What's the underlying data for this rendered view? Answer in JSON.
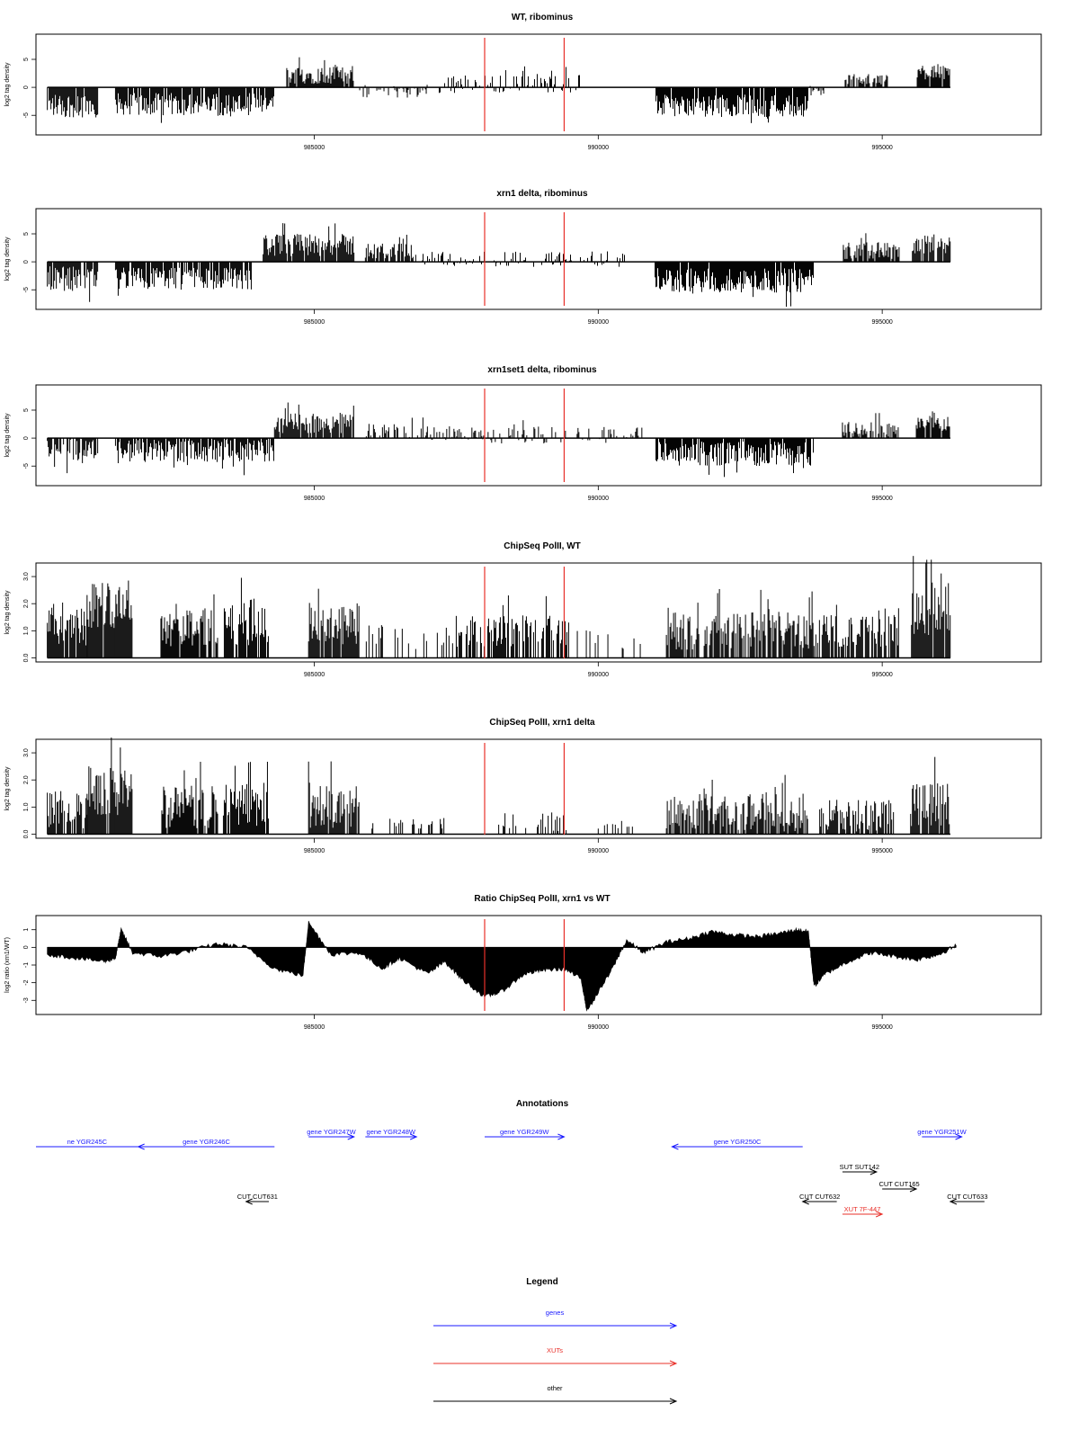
{
  "panels": [
    {
      "title": "WT, ribominus",
      "type": "bar",
      "ylabel": "log2 tag density",
      "ylim": [
        -8.5,
        9.5
      ],
      "yticks": [
        "-5",
        "0",
        "5"
      ],
      "ytick_values": [
        -5,
        0,
        5
      ],
      "xlim": [
        980100,
        997800
      ],
      "xticks": [
        "985000",
        "990000",
        "995000"
      ],
      "xtick_values": [
        985000,
        990000,
        995000
      ],
      "segments": [
        {
          "x0": 980300,
          "x1": 981200,
          "mean": -3.2,
          "amp": 2.2,
          "density": 0.9
        },
        {
          "x0": 981500,
          "x1": 984300,
          "mean": -3.0,
          "amp": 2.0,
          "density": 0.9
        },
        {
          "x0": 984500,
          "x1": 985700,
          "mean": 2.2,
          "amp": 1.6,
          "density": 0.9
        },
        {
          "x0": 985800,
          "x1": 987000,
          "mean": -0.6,
          "amp": 1.3,
          "density": 0.5
        },
        {
          "x0": 987200,
          "x1": 989700,
          "mean": 0.6,
          "amp": 1.6,
          "density": 0.4
        },
        {
          "x0": 991000,
          "x1": 993700,
          "mean": -3.3,
          "amp": 2.0,
          "density": 0.95
        },
        {
          "x0": 993700,
          "x1": 994000,
          "mean": -0.6,
          "amp": 1.0,
          "density": 0.6
        },
        {
          "x0": 994300,
          "x1": 995100,
          "mean": 1.4,
          "amp": 1.0,
          "density": 0.6
        },
        {
          "x0": 995600,
          "x1": 996200,
          "mean": 2.8,
          "amp": 1.4,
          "density": 0.9
        }
      ],
      "markers": [
        988000,
        989400
      ],
      "marker_color": "#e8302a"
    },
    {
      "title": "xrn1 delta, ribominus",
      "type": "bar",
      "ylabel": "log2 tag density",
      "ylim": [
        -8.5,
        9.5
      ],
      "yticks": [
        "-5",
        "0",
        "5"
      ],
      "ytick_values": [
        -5,
        0,
        5
      ],
      "xlim": [
        980100,
        997800
      ],
      "xticks": [
        "985000",
        "990000",
        "995000"
      ],
      "xtick_values": [
        985000,
        990000,
        995000
      ],
      "segments": [
        {
          "x0": 980300,
          "x1": 981200,
          "mean": -3.0,
          "amp": 2.2,
          "density": 0.9
        },
        {
          "x0": 981500,
          "x1": 983900,
          "mean": -3.0,
          "amp": 2.0,
          "density": 0.9
        },
        {
          "x0": 984100,
          "x1": 985700,
          "mean": 3.0,
          "amp": 2.0,
          "density": 0.95
        },
        {
          "x0": 985900,
          "x1": 986800,
          "mean": 2.0,
          "amp": 1.4,
          "density": 0.8
        },
        {
          "x0": 986900,
          "x1": 990500,
          "mean": 0.5,
          "amp": 1.4,
          "density": 0.35
        },
        {
          "x0": 991000,
          "x1": 993800,
          "mean": -3.3,
          "amp": 2.2,
          "density": 0.95
        },
        {
          "x0": 994300,
          "x1": 995300,
          "mean": 2.0,
          "amp": 1.5,
          "density": 0.8
        },
        {
          "x0": 995500,
          "x1": 996200,
          "mean": 3.0,
          "amp": 1.5,
          "density": 0.9
        }
      ],
      "markers": [
        988000,
        989400
      ],
      "marker_color": "#e8302a"
    },
    {
      "title": "xrn1set1 delta, ribominus",
      "type": "bar",
      "ylabel": "log2 tag density",
      "ylim": [
        -8.5,
        9.5
      ],
      "yticks": [
        "-5",
        "0",
        "5"
      ],
      "ytick_values": [
        -5,
        0,
        5
      ],
      "xlim": [
        980100,
        997800
      ],
      "xticks": [
        "985000",
        "990000",
        "995000"
      ],
      "xtick_values": [
        985000,
        990000,
        995000
      ],
      "segments": [
        {
          "x0": 980300,
          "x1": 981200,
          "mean": -2.0,
          "amp": 2.0,
          "density": 0.7
        },
        {
          "x0": 981500,
          "x1": 984300,
          "mean": -2.3,
          "amp": 2.0,
          "density": 0.85
        },
        {
          "x0": 984300,
          "x1": 985700,
          "mean": 2.6,
          "amp": 1.8,
          "density": 0.9
        },
        {
          "x0": 985900,
          "x1": 987000,
          "mean": 1.2,
          "amp": 1.5,
          "density": 0.6
        },
        {
          "x0": 987000,
          "x1": 990800,
          "mean": 0.5,
          "amp": 1.6,
          "density": 0.4
        },
        {
          "x0": 991000,
          "x1": 993800,
          "mean": -2.8,
          "amp": 2.2,
          "density": 0.95
        },
        {
          "x0": 994300,
          "x1": 995300,
          "mean": 1.5,
          "amp": 1.5,
          "density": 0.7
        },
        {
          "x0": 995600,
          "x1": 996200,
          "mean": 2.6,
          "amp": 1.4,
          "density": 0.9
        }
      ],
      "markers": [
        988000,
        989400
      ],
      "marker_color": "#e8302a"
    },
    {
      "title": "ChipSeq PolII, WT",
      "type": "bar",
      "ylabel": "log2 tag density",
      "ylim": [
        -0.15,
        3.5
      ],
      "yticks": [
        "0.0",
        "1.0",
        "2.0",
        "3.0"
      ],
      "ytick_values": [
        0,
        1,
        2,
        3
      ],
      "xlim": [
        980100,
        997800
      ],
      "xticks": [
        "985000",
        "990000",
        "995000"
      ],
      "xtick_values": [
        985000,
        990000,
        995000
      ],
      "segments": [
        {
          "x0": 980300,
          "x1": 981000,
          "mean": 1.2,
          "amp": 0.8,
          "density": 0.9
        },
        {
          "x0": 981000,
          "x1": 981800,
          "mean": 2.0,
          "amp": 0.9,
          "density": 0.95
        },
        {
          "x0": 982300,
          "x1": 983300,
          "mean": 1.2,
          "amp": 0.8,
          "density": 0.9
        },
        {
          "x0": 983400,
          "x1": 984200,
          "mean": 1.3,
          "amp": 0.9,
          "density": 0.9
        },
        {
          "x0": 984900,
          "x1": 985800,
          "mean": 1.3,
          "amp": 0.8,
          "density": 0.9
        },
        {
          "x0": 985900,
          "x1": 987500,
          "mean": 0.8,
          "amp": 0.5,
          "density": 0.3
        },
        {
          "x0": 987500,
          "x1": 989500,
          "mean": 1.0,
          "amp": 0.6,
          "density": 0.7
        },
        {
          "x0": 989600,
          "x1": 990800,
          "mean": 0.7,
          "amp": 0.4,
          "density": 0.2
        },
        {
          "x0": 991200,
          "x1": 993800,
          "mean": 1.0,
          "amp": 0.7,
          "density": 0.8
        },
        {
          "x0": 993800,
          "x1": 995300,
          "mean": 1.0,
          "amp": 0.6,
          "density": 0.75
        },
        {
          "x0": 995500,
          "x1": 996200,
          "mean": 1.8,
          "amp": 1.0,
          "density": 0.95
        }
      ],
      "markers": [
        988000,
        989400
      ],
      "marker_color": "#e8302a"
    },
    {
      "title": "ChipSeq PolII, xrn1 delta",
      "type": "bar",
      "ylabel": "log2 tag density",
      "ylim": [
        -0.15,
        3.5
      ],
      "yticks": [
        "0.0",
        "1.0",
        "2.0",
        "3.0"
      ],
      "ytick_values": [
        0,
        1,
        2,
        3
      ],
      "xlim": [
        980100,
        997800
      ],
      "xticks": [
        "985000",
        "990000",
        "995000"
      ],
      "xtick_values": [
        985000,
        990000,
        995000
      ],
      "segments": [
        {
          "x0": 980300,
          "x1": 981000,
          "mean": 0.9,
          "amp": 0.7,
          "density": 0.8
        },
        {
          "x0": 981000,
          "x1": 981800,
          "mean": 1.6,
          "amp": 0.9,
          "density": 0.95
        },
        {
          "x0": 982300,
          "x1": 983300,
          "mean": 1.0,
          "amp": 0.8,
          "density": 0.9
        },
        {
          "x0": 983400,
          "x1": 984200,
          "mean": 1.1,
          "amp": 0.8,
          "density": 0.9
        },
        {
          "x0": 984900,
          "x1": 985800,
          "mean": 1.0,
          "amp": 0.8,
          "density": 0.9
        },
        {
          "x0": 986000,
          "x1": 987300,
          "mean": 0.4,
          "amp": 0.2,
          "density": 0.25
        },
        {
          "x0": 988200,
          "x1": 989500,
          "mean": 0.4,
          "amp": 0.4,
          "density": 0.3
        },
        {
          "x0": 990000,
          "x1": 990800,
          "mean": 0.3,
          "amp": 0.1,
          "density": 0.1
        },
        {
          "x0": 991200,
          "x1": 993700,
          "mean": 0.8,
          "amp": 0.7,
          "density": 0.8
        },
        {
          "x0": 993900,
          "x1": 995200,
          "mean": 0.7,
          "amp": 0.6,
          "density": 0.7
        },
        {
          "x0": 995500,
          "x1": 996200,
          "mean": 1.1,
          "amp": 0.8,
          "density": 0.9
        }
      ],
      "markers": [
        988000,
        989400
      ],
      "marker_color": "#e8302a"
    },
    {
      "title": "Ratio ChipSeq PolII, xrn1 vs WT",
      "type": "area",
      "ylabel": "log2 ratio (xrn1/WT)",
      "ylim": [
        -3.8,
        1.8
      ],
      "yticks": [
        "-3",
        "-2",
        "-1",
        "0",
        "1"
      ],
      "ytick_values": [
        -3,
        -2,
        -1,
        0,
        1
      ],
      "xlim": [
        980100,
        997800
      ],
      "xticks": [
        "985000",
        "990000",
        "995000"
      ],
      "xtick_values": [
        985000,
        990000,
        995000
      ],
      "x": [
        980300,
        980800,
        981300,
        981500,
        981600,
        981800,
        982300,
        982800,
        983300,
        983800,
        984300,
        984800,
        984900,
        985300,
        985800,
        986200,
        986500,
        987000,
        987300,
        987600,
        988000,
        988300,
        988700,
        989000,
        989400,
        989700,
        989800,
        990200,
        990500,
        990800,
        991200,
        991600,
        992000,
        992400,
        992800,
        993200,
        993500,
        993700,
        993800,
        994000,
        994400,
        994800,
        995200,
        995600,
        996000,
        996300
      ],
      "y": [
        -0.4,
        -0.6,
        -0.8,
        -0.6,
        1.0,
        -0.3,
        -0.5,
        -0.2,
        0.2,
        0.0,
        -1.2,
        -1.6,
        1.4,
        -0.4,
        -0.3,
        -1.2,
        -0.6,
        -1.5,
        -0.8,
        -1.8,
        -2.8,
        -2.5,
        -1.5,
        -1.3,
        -1.2,
        -1.8,
        -3.6,
        -1.5,
        0.4,
        -0.3,
        0.3,
        0.5,
        0.9,
        0.7,
        0.6,
        0.8,
        1.0,
        0.9,
        -2.2,
        -1.5,
        -0.8,
        -0.3,
        -0.5,
        -0.7,
        -0.4,
        0.1
      ],
      "markers": [
        988000,
        989400
      ],
      "marker_color": "#e8302a"
    }
  ],
  "annotations": {
    "title": "Annotations",
    "items": [
      {
        "label": "ne YGR245C",
        "start": 980100,
        "end": 981900,
        "row": 1,
        "dir": "none",
        "color": "#1a1aff"
      },
      {
        "label": "gene YGR246C",
        "start": 981900,
        "end": 984300,
        "row": 1,
        "dir": "left",
        "color": "#1a1aff"
      },
      {
        "label": "gene YGR247W",
        "start": 984900,
        "end": 985700,
        "row": 0,
        "dir": "right",
        "color": "#1a1aff"
      },
      {
        "label": "gene YGR248W",
        "start": 985900,
        "end": 986800,
        "row": 0,
        "dir": "right",
        "color": "#1a1aff"
      },
      {
        "label": "gene YGR249W",
        "start": 988000,
        "end": 989400,
        "row": 0,
        "dir": "right",
        "color": "#1a1aff"
      },
      {
        "label": "gene YGR250C",
        "start": 991300,
        "end": 993600,
        "row": 1,
        "dir": "left",
        "color": "#1a1aff"
      },
      {
        "label": "gene YGR251W",
        "start": 995700,
        "end": 996400,
        "row": 0,
        "dir": "right",
        "color": "#1a1aff"
      },
      {
        "label": "SUT SUT142",
        "start": 994300,
        "end": 994900,
        "row": 2,
        "dir": "right",
        "color": "#000000"
      },
      {
        "label": "CUT CUT165",
        "start": 995000,
        "end": 995600,
        "row": 3,
        "dir": "right",
        "color": "#000000"
      },
      {
        "label": "CUT CUT631",
        "start": 983800,
        "end": 984200,
        "row": 4,
        "dir": "left",
        "color": "#000000"
      },
      {
        "label": "CUT CUT632",
        "start": 993600,
        "end": 994200,
        "row": 4,
        "dir": "left",
        "color": "#000000"
      },
      {
        "label": "CUT CUT633",
        "start": 996200,
        "end": 996800,
        "row": 4,
        "dir": "left",
        "color": "#000000"
      },
      {
        "label": "XUT 7F-447",
        "start": 994300,
        "end": 995000,
        "row": 5,
        "dir": "right",
        "color": "#e8302a"
      }
    ]
  },
  "legend": {
    "title": "Legend",
    "items": [
      {
        "label": "genes",
        "color": "#1a1aff"
      },
      {
        "label": "XUTs",
        "color": "#e8302a"
      },
      {
        "label": "other",
        "color": "#000000"
      }
    ]
  }
}
